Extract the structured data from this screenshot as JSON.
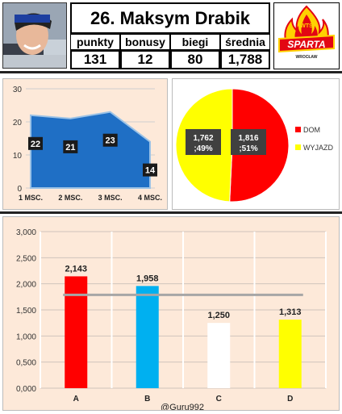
{
  "player": {
    "title": "26. Maksym Drabik",
    "stats": [
      {
        "label": "punkty",
        "value": "131"
      },
      {
        "label": "bonusy",
        "value": "12"
      },
      {
        "label": "biegi",
        "value": "80"
      },
      {
        "label": "średnia",
        "value": "1,788"
      }
    ],
    "logo": {
      "top_text": "WTS",
      "main_text": "SPARTA",
      "city_text": "WROCŁAW",
      "color_red": "#e30613",
      "color_yellow": "#ffd200"
    }
  },
  "watermark": "@Guru992",
  "chart_data": [
    {
      "type": "area",
      "categories": [
        "1 MSC.",
        "2 MSC.",
        "3 MSC.",
        "4 MSC."
      ],
      "values": [
        22,
        21,
        23,
        14
      ],
      "data_labels": [
        "22",
        "21",
        "23",
        "14"
      ],
      "ylim": [
        0,
        30
      ],
      "yticks": [
        "0",
        "10",
        "20",
        "30"
      ],
      "grid": true,
      "color": "#1f6fc5"
    },
    {
      "type": "pie",
      "slices": [
        {
          "name": "DOM",
          "value": 1.816,
          "percent": 51,
          "label": "1,816\n;51%",
          "color": "#ff0000"
        },
        {
          "name": "WYJAZD",
          "value": 1.762,
          "percent": 49,
          "label": "1,762\n;49%",
          "color": "#ffff00"
        }
      ],
      "legend": "right"
    },
    {
      "type": "bar",
      "categories": [
        "A",
        "B",
        "C",
        "D"
      ],
      "values": [
        2.143,
        1.958,
        1.25,
        1.313
      ],
      "data_labels": [
        "2,143",
        "1,958",
        "1,250",
        "1,313"
      ],
      "colors": [
        "#ff0000",
        "#00b0f0",
        "#ffffff",
        "#ffff00"
      ],
      "reference_line": 1.788,
      "ylim": [
        0,
        3
      ],
      "yticks": [
        "0,000",
        "0,500",
        "1,000",
        "1,500",
        "2,000",
        "2,500",
        "3,000"
      ],
      "grid": true
    }
  ]
}
